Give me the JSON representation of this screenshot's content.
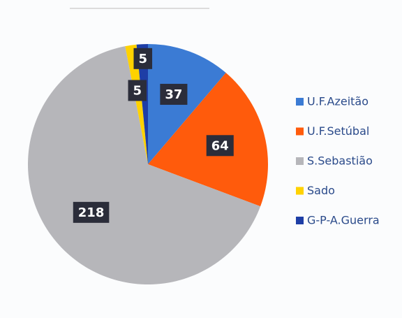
{
  "chart_data": {
    "type": "pie",
    "categories": [
      "U.F.Azeitão",
      "U.F.Setúbal",
      "S.Sebastião",
      "Sado",
      "G-P-A.Guerra"
    ],
    "values": [
      37,
      64,
      218,
      5,
      5
    ],
    "colors": [
      "#3b7bd4",
      "#ff5b0c",
      "#b6b6ba",
      "#ffd200",
      "#1e3ea6"
    ],
    "legend": "right"
  }
}
